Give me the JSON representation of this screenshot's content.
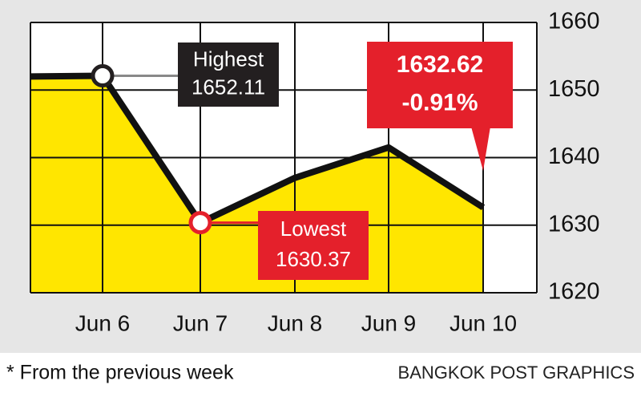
{
  "chart_data": {
    "type": "line",
    "categories": [
      null,
      "Jun 6",
      "Jun 7",
      "Jun 8",
      "Jun 9",
      "Jun 10"
    ],
    "values": [
      1652,
      1652.11,
      1630.37,
      1637,
      1641.5,
      1632.62
    ],
    "color": "#111111",
    "area_color": "#ffe600",
    "ylim": [
      1620,
      1660
    ],
    "yticks": [
      1620,
      1630,
      1640,
      1650,
      1660
    ],
    "grid": true,
    "annotations": [
      {
        "lines": [
          "Highest",
          "1652.11"
        ],
        "color": "#231f20"
      },
      {
        "lines": [
          "Lowest",
          "1630.37"
        ],
        "color": "#e4202b"
      },
      {
        "lines": [
          "1632.62",
          "-0.91%"
        ],
        "color": "#e4202b"
      }
    ],
    "footnote": "* From the previous week",
    "source": "BANGKOK POST GRAPHICS"
  }
}
